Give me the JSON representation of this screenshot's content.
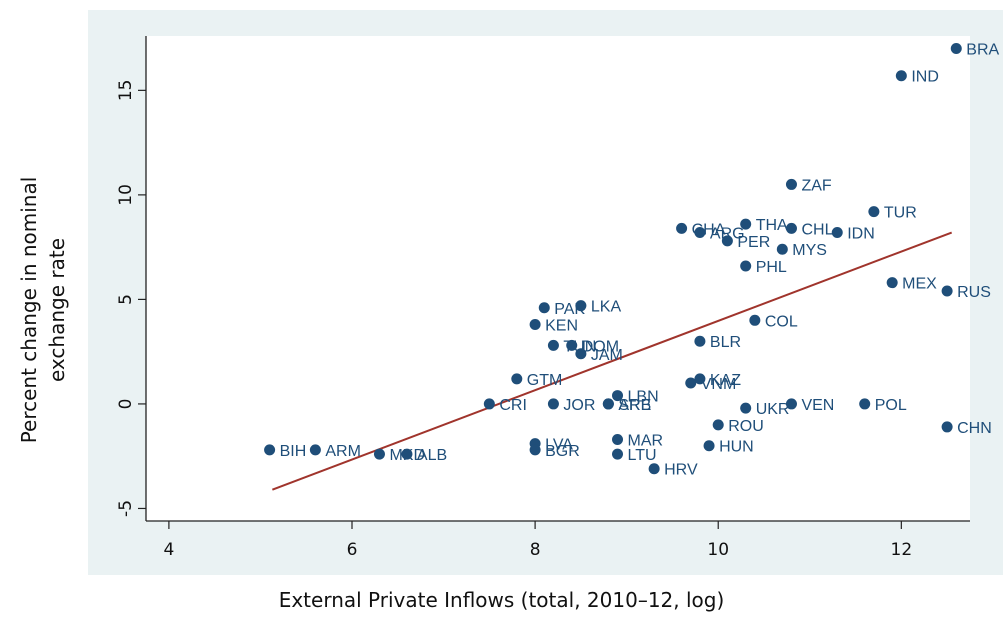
{
  "chart_data": {
    "type": "scatter",
    "title": "",
    "xlabel": "External Private Inflows (total, 2010–12, log)",
    "ylabel_lines": [
      "Percent change in nominal",
      "exchange rate"
    ],
    "xlim": [
      3.75,
      12.75
    ],
    "ylim": [
      -5.6,
      17.6
    ],
    "xticks": [
      4,
      6,
      8,
      10,
      12
    ],
    "yticks": [
      -5,
      0,
      5,
      10,
      15
    ],
    "grid": false,
    "legend": "none",
    "marker_color": "#1f4e79",
    "label_color": "#1f4e79",
    "fit_color": "#a0342c",
    "plot_region_color": "#eaf2f3",
    "fit_line": {
      "x": [
        5.13,
        12.55
      ],
      "y": [
        -4.1,
        8.2
      ]
    },
    "points": [
      {
        "label": "BRA",
        "x": 12.6,
        "y": 17.0
      },
      {
        "label": "IND",
        "x": 12.0,
        "y": 15.7
      },
      {
        "label": "ZAF",
        "x": 10.8,
        "y": 10.5
      },
      {
        "label": "TUR",
        "x": 11.7,
        "y": 9.2
      },
      {
        "label": "THA",
        "x": 10.3,
        "y": 8.6
      },
      {
        "label": "CHL",
        "x": 10.8,
        "y": 8.4
      },
      {
        "label": "IDN",
        "x": 11.3,
        "y": 8.2
      },
      {
        "label": "CHA",
        "x": 9.6,
        "y": 8.4
      },
      {
        "label": "ARG",
        "x": 9.8,
        "y": 8.2
      },
      {
        "label": "PER",
        "x": 10.1,
        "y": 7.8
      },
      {
        "label": "MYS",
        "x": 10.7,
        "y": 7.4
      },
      {
        "label": "PHL",
        "x": 10.3,
        "y": 6.6
      },
      {
        "label": "MEX",
        "x": 11.9,
        "y": 5.8
      },
      {
        "label": "RUS",
        "x": 12.5,
        "y": 5.4
      },
      {
        "label": "PAK",
        "x": 8.1,
        "y": 4.6
      },
      {
        "label": "LKA",
        "x": 8.5,
        "y": 4.7
      },
      {
        "label": "KEN",
        "x": 8.0,
        "y": 3.8
      },
      {
        "label": "COL",
        "x": 10.4,
        "y": 4.0
      },
      {
        "label": "BLR",
        "x": 9.8,
        "y": 3.0
      },
      {
        "label": "TUN",
        "x": 8.2,
        "y": 2.8
      },
      {
        "label": "DOM",
        "x": 8.4,
        "y": 2.8
      },
      {
        "label": "JAM",
        "x": 8.5,
        "y": 2.4
      },
      {
        "label": "GTM",
        "x": 7.8,
        "y": 1.2
      },
      {
        "label": "KAZ",
        "x": 9.8,
        "y": 1.2
      },
      {
        "label": "VNM",
        "x": 9.7,
        "y": 1.0
      },
      {
        "label": "LBN",
        "x": 8.9,
        "y": 0.4
      },
      {
        "label": "CRI",
        "x": 7.5,
        "y": 0.0
      },
      {
        "label": "JOR",
        "x": 8.2,
        "y": 0.0
      },
      {
        "label": "SRB",
        "x": 8.8,
        "y": 0.0
      },
      {
        "label": "ARE",
        "x": 8.8,
        "y": 0.0
      },
      {
        "label": "UKR",
        "x": 10.3,
        "y": -0.2
      },
      {
        "label": "VEN",
        "x": 10.8,
        "y": 0.0
      },
      {
        "label": "POL",
        "x": 11.6,
        "y": 0.0
      },
      {
        "label": "ROU",
        "x": 10.0,
        "y": -1.0
      },
      {
        "label": "CHN",
        "x": 12.5,
        "y": -1.1
      },
      {
        "label": "BIH",
        "x": 5.1,
        "y": -2.2
      },
      {
        "label": "ARM",
        "x": 5.6,
        "y": -2.2
      },
      {
        "label": "MKD",
        "x": 6.3,
        "y": -2.4
      },
      {
        "label": "ALB",
        "x": 6.6,
        "y": -2.4
      },
      {
        "label": "LVA",
        "x": 8.0,
        "y": -1.9
      },
      {
        "label": "BGR",
        "x": 8.0,
        "y": -2.2
      },
      {
        "label": "MAR",
        "x": 8.9,
        "y": -1.7
      },
      {
        "label": "LTU",
        "x": 8.9,
        "y": -2.4
      },
      {
        "label": "HUN",
        "x": 9.9,
        "y": -2.0
      },
      {
        "label": "HRV",
        "x": 9.3,
        "y": -3.1
      }
    ]
  }
}
